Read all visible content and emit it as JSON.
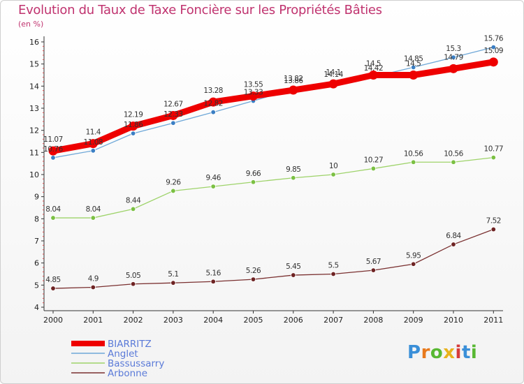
{
  "header": {
    "title": "Evolution du Taux de Taxe Foncière sur les Propriétés Bâties",
    "unit": "(en %)"
  },
  "logo": {
    "text": "Proxiti",
    "colors": [
      "#3a8fd8",
      "#e87a1d",
      "#58b833",
      "#e8b21d",
      "#d63b3b",
      "#3a8fd8",
      "#58b833"
    ]
  },
  "chart_data": {
    "type": "line",
    "title": "Evolution du Taux de Taxe Foncière sur les Propriétés Bâties",
    "ylabel": "(en %)",
    "xlabel": "",
    "x": [
      "2000",
      "2001",
      "2002",
      "2003",
      "2004",
      "2005",
      "2006",
      "2007",
      "2008",
      "2009",
      "2010",
      "2011"
    ],
    "ylim": [
      4,
      16
    ],
    "yticks": [
      "4",
      "5",
      "6",
      "7",
      "8",
      "9",
      "10",
      "11",
      "12",
      "13",
      "14",
      "15",
      "16"
    ],
    "grid": false,
    "legend": "bottom-left",
    "series": [
      {
        "name": "Anglet",
        "color": "#6fa8d8",
        "marker": "#3b7fc4",
        "values": [
          10.76,
          11.08,
          11.86,
          12.33,
          12.82,
          13.33,
          13.86,
          14.14,
          14.42,
          14.85,
          15.3,
          15.76
        ],
        "labels": [
          "10.76",
          "11.08",
          "11.86",
          "12.33",
          "12.82",
          "13.33",
          "13.86",
          "14.14",
          "14.42",
          "14.85",
          "15.3",
          "15.76"
        ]
      },
      {
        "name": "Bassussarry",
        "color": "#9ed36a",
        "marker": "#7bc043",
        "values": [
          8.04,
          8.04,
          8.44,
          9.26,
          9.46,
          9.66,
          9.85,
          10,
          10.27,
          10.56,
          10.56,
          10.77
        ],
        "labels": [
          "8.04",
          "8.04",
          "8.44",
          "9.26",
          "9.46",
          "9.66",
          "9.85",
          "10",
          "10.27",
          "10.56",
          "10.56",
          "10.77"
        ]
      },
      {
        "name": "Arbonne",
        "color": "#7a3030",
        "marker": "#6e2323",
        "values": [
          4.85,
          4.9,
          5.05,
          5.1,
          5.16,
          5.26,
          5.45,
          5.5,
          5.67,
          5.95,
          6.84,
          7.52
        ],
        "labels": [
          "4.85",
          "4.9",
          "5.05",
          "5.1",
          "5.16",
          "5.26",
          "5.45",
          "5.5",
          "5.67",
          "5.95",
          "6.84",
          "7.52"
        ]
      },
      {
        "name": "BIARRITZ",
        "color": "#ee0000",
        "marker": "#ee0000",
        "values": [
          11.07,
          11.4,
          12.19,
          12.67,
          13.28,
          13.55,
          13.82,
          14.1,
          14.5,
          14.5,
          14.79,
          15.09
        ],
        "labels": [
          "11.07",
          "11.4",
          "12.19",
          "12.67",
          "13.28",
          "13.55",
          "13.82",
          "14.1",
          "14.5",
          "14.5",
          "14.79",
          "15.09"
        ]
      }
    ],
    "legend_order": [
      "BIARRITZ",
      "Anglet",
      "Bassussarry",
      "Arbonne"
    ]
  }
}
